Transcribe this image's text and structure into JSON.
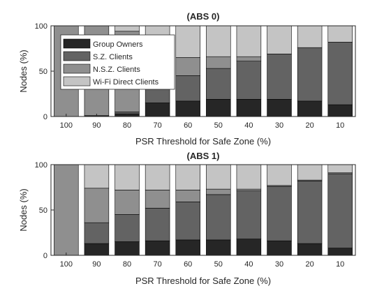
{
  "chart_data": [
    {
      "type": "bar",
      "stacked": true,
      "title": "(ABS 0)",
      "xlabel": "PSR Threshold for Safe Zone (%)",
      "ylabel": "Nodes (%)",
      "ylim": [
        0,
        100
      ],
      "yticks": [
        0,
        50,
        100
      ],
      "categories": [
        "100",
        "90",
        "80",
        "70",
        "60",
        "50",
        "40",
        "30",
        "20",
        "10"
      ],
      "grid": false,
      "legend": "top-left",
      "series": [
        {
          "name": "Group Owners",
          "color": "#262626",
          "values": [
            0,
            1,
            3,
            15,
            17,
            19,
            19,
            19,
            17,
            13
          ]
        },
        {
          "name": "S.Z. Clients",
          "color": "#636363",
          "values": [
            0,
            0,
            2,
            21,
            28,
            34,
            42,
            50,
            59,
            69
          ]
        },
        {
          "name": "N.S.Z. Clients",
          "color": "#8f8f8f",
          "values": [
            100,
            99,
            89,
            39,
            20,
            13,
            5,
            0,
            0,
            0
          ]
        },
        {
          "name": "Wi-Fi Direct Clients",
          "color": "#c4c4c4",
          "values": [
            0,
            0,
            6,
            25,
            35,
            34,
            34,
            31,
            24,
            18
          ]
        }
      ]
    },
    {
      "type": "bar",
      "stacked": true,
      "title": "(ABS 1)",
      "xlabel": "PSR Threshold for Safe Zone (%)",
      "ylabel": "Nodes (%)",
      "ylim": [
        0,
        100
      ],
      "yticks": [
        0,
        50,
        100
      ],
      "categories": [
        "100",
        "90",
        "80",
        "70",
        "60",
        "50",
        "40",
        "30",
        "20",
        "10"
      ],
      "grid": false,
      "series": [
        {
          "name": "Group Owners",
          "color": "#262626",
          "values": [
            0,
            13,
            15,
            16,
            17,
            17,
            18,
            16,
            13,
            8
          ]
        },
        {
          "name": "S.Z. Clients",
          "color": "#636363",
          "values": [
            0,
            23,
            30,
            36,
            42,
            50,
            53,
            60,
            69,
            82
          ]
        },
        {
          "name": "N.S.Z. Clients",
          "color": "#8f8f8f",
          "values": [
            100,
            38,
            27,
            20,
            13,
            6,
            2,
            1,
            1,
            1
          ]
        },
        {
          "name": "Wi-Fi Direct Clients",
          "color": "#c4c4c4",
          "values": [
            0,
            26,
            28,
            28,
            28,
            27,
            27,
            23,
            17,
            9
          ]
        }
      ]
    }
  ]
}
